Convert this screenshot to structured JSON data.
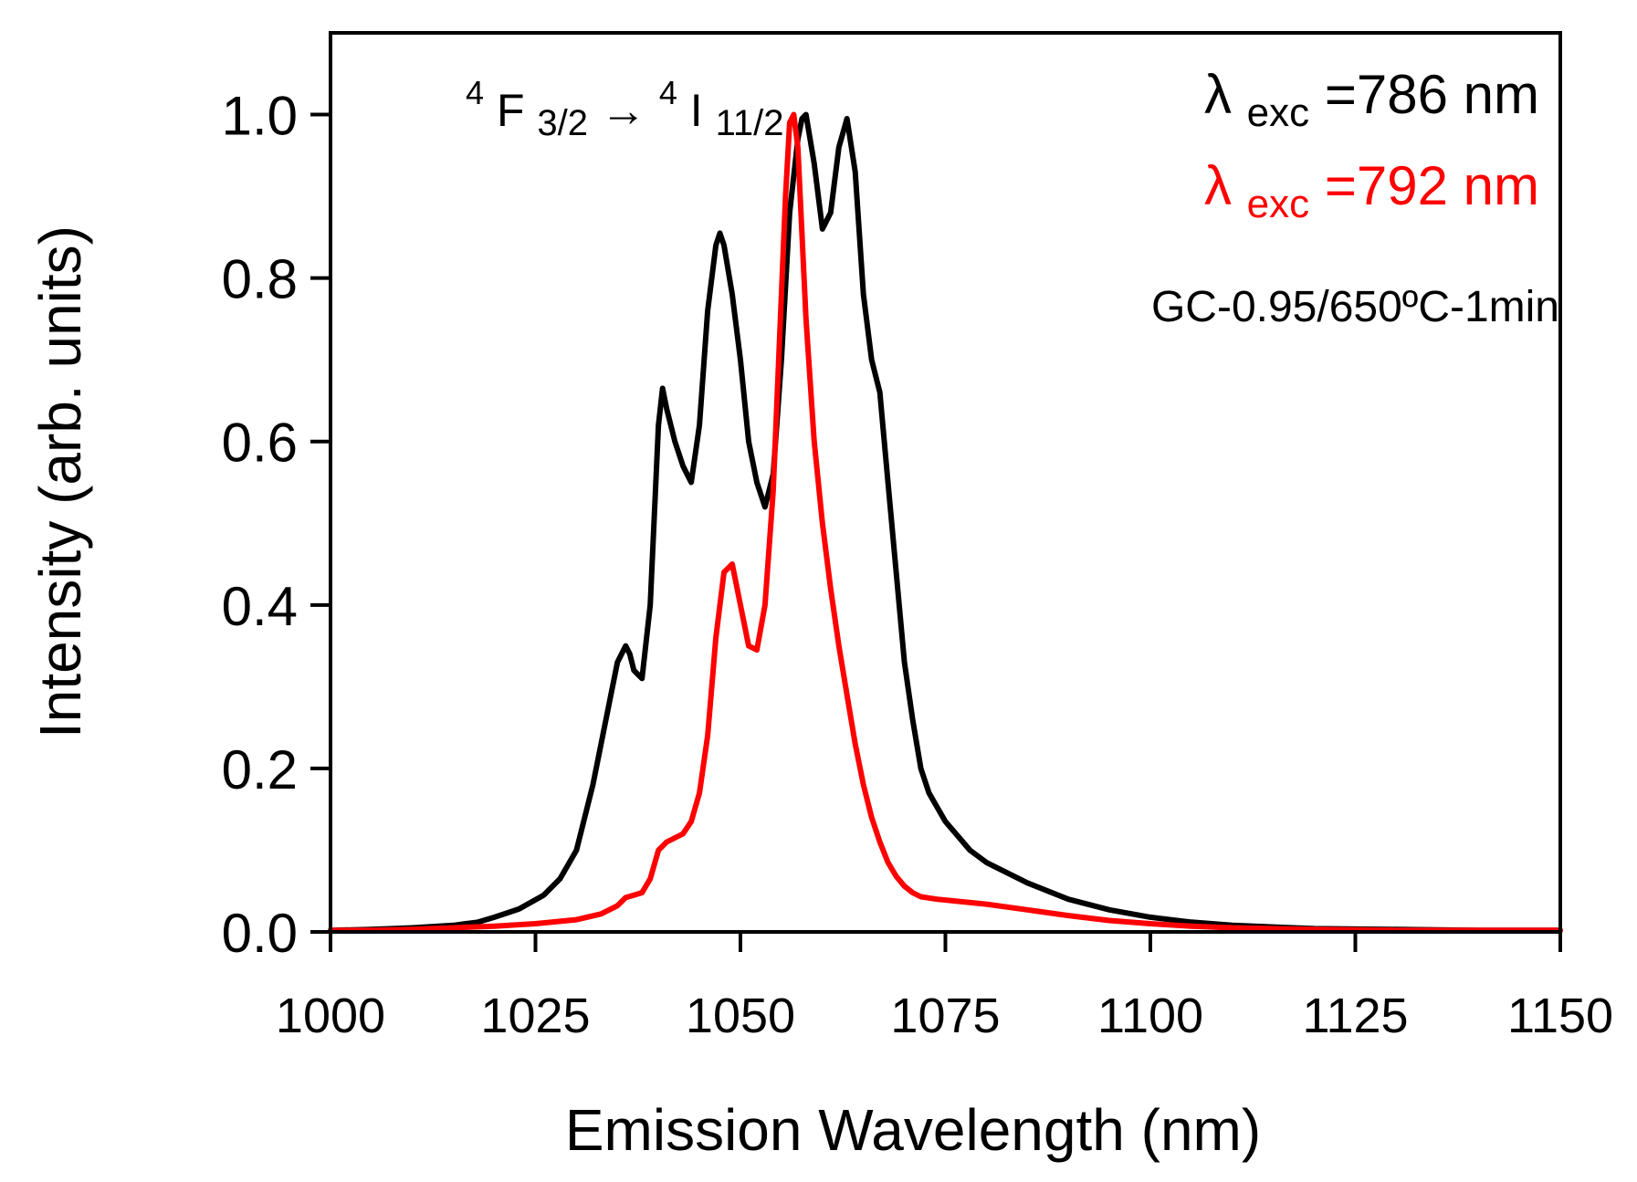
{
  "chart_data": {
    "type": "line",
    "title": "",
    "xlabel": "Emission Wavelength (nm)",
    "ylabel": "Intensity (arb. units)",
    "xlim": [
      1000,
      1150
    ],
    "ylim": [
      0,
      1.1
    ],
    "xticks": [
      1000,
      1025,
      1050,
      1075,
      1100,
      1125,
      1150
    ],
    "xtick_labels": [
      "1000",
      "1025",
      "1050",
      "1075",
      "1100",
      "1125",
      "1150"
    ],
    "yticks": [
      0.0,
      0.2,
      0.4,
      0.6,
      0.8,
      1.0
    ],
    "ytick_labels": [
      "0.0",
      "0.2",
      "0.4",
      "0.6",
      "0.8",
      "1.0"
    ],
    "grid": false,
    "colors": {
      "series_786": "#000000",
      "series_792": "#ff0000",
      "axes": "#000000"
    },
    "series": [
      {
        "name": "λexc=786 nm",
        "color": "#000000",
        "x": [
          1000,
          1005,
          1010,
          1015,
          1018,
          1020,
          1023,
          1026,
          1028,
          1030,
          1032,
          1034,
          1035,
          1036,
          1036.5,
          1037,
          1038,
          1039,
          1040,
          1040.5,
          1041,
          1042,
          1043,
          1044,
          1045,
          1046,
          1047,
          1047.5,
          1048,
          1049,
          1050,
          1051,
          1052,
          1053,
          1054,
          1055,
          1056,
          1057,
          1057.5,
          1058,
          1059,
          1060,
          1061,
          1062,
          1063,
          1064,
          1065,
          1066,
          1067,
          1068,
          1069,
          1070,
          1071,
          1072,
          1073,
          1075,
          1078,
          1080,
          1085,
          1090,
          1095,
          1100,
          1105,
          1110,
          1115,
          1120,
          1130,
          1140,
          1150
        ],
        "values": [
          0.002,
          0.003,
          0.005,
          0.008,
          0.012,
          0.018,
          0.028,
          0.045,
          0.065,
          0.1,
          0.18,
          0.28,
          0.33,
          0.35,
          0.34,
          0.32,
          0.31,
          0.4,
          0.62,
          0.665,
          0.64,
          0.6,
          0.57,
          0.55,
          0.62,
          0.76,
          0.84,
          0.855,
          0.84,
          0.78,
          0.7,
          0.6,
          0.55,
          0.52,
          0.56,
          0.7,
          0.88,
          0.97,
          0.995,
          1.0,
          0.94,
          0.86,
          0.88,
          0.96,
          0.995,
          0.93,
          0.78,
          0.7,
          0.66,
          0.55,
          0.44,
          0.33,
          0.26,
          0.2,
          0.17,
          0.135,
          0.1,
          0.085,
          0.06,
          0.04,
          0.027,
          0.018,
          0.012,
          0.008,
          0.006,
          0.004,
          0.003,
          0.002,
          0.002
        ]
      },
      {
        "name": "λexc=792 nm",
        "color": "#ff0000",
        "x": [
          1000,
          1005,
          1010,
          1015,
          1020,
          1025,
          1030,
          1033,
          1035,
          1036,
          1037,
          1038,
          1039,
          1040,
          1041,
          1042,
          1043,
          1044,
          1045,
          1046,
          1047,
          1048,
          1049,
          1050,
          1051,
          1052,
          1053,
          1054,
          1055,
          1055.5,
          1056,
          1056.5,
          1057,
          1058,
          1059,
          1060,
          1061,
          1062,
          1063,
          1064,
          1065,
          1066,
          1067,
          1068,
          1069,
          1070,
          1071,
          1072,
          1074,
          1076,
          1080,
          1085,
          1090,
          1095,
          1100,
          1105,
          1110,
          1115,
          1120,
          1130,
          1140,
          1150
        ],
        "values": [
          0.002,
          0.002,
          0.003,
          0.005,
          0.007,
          0.01,
          0.015,
          0.022,
          0.032,
          0.042,
          0.045,
          0.048,
          0.065,
          0.1,
          0.11,
          0.115,
          0.12,
          0.135,
          0.17,
          0.24,
          0.36,
          0.44,
          0.45,
          0.4,
          0.35,
          0.345,
          0.4,
          0.54,
          0.78,
          0.9,
          0.99,
          1.0,
          0.96,
          0.75,
          0.6,
          0.5,
          0.42,
          0.35,
          0.29,
          0.23,
          0.18,
          0.14,
          0.11,
          0.085,
          0.068,
          0.056,
          0.048,
          0.043,
          0.04,
          0.038,
          0.034,
          0.027,
          0.02,
          0.014,
          0.01,
          0.007,
          0.005,
          0.004,
          0.003,
          0.002,
          0.002,
          0.002
        ]
      }
    ],
    "annotations": {
      "transition": {
        "sup1": "4",
        "letter1": "F",
        "sub1": "3/2",
        "arrow": "→",
        "sup2": "4",
        "letter2": "I",
        "sub2": "11/2"
      },
      "legend_786": {
        "symbol": "λ",
        "sub": "exc",
        "value": "=786 nm",
        "color": "#000000"
      },
      "legend_792": {
        "symbol": "λ",
        "sub": "exc",
        "value": "=792 nm",
        "color": "#ff0000"
      },
      "sample": "GC-0.95/650ºC-1min",
      "legend_position": "top-right"
    }
  }
}
